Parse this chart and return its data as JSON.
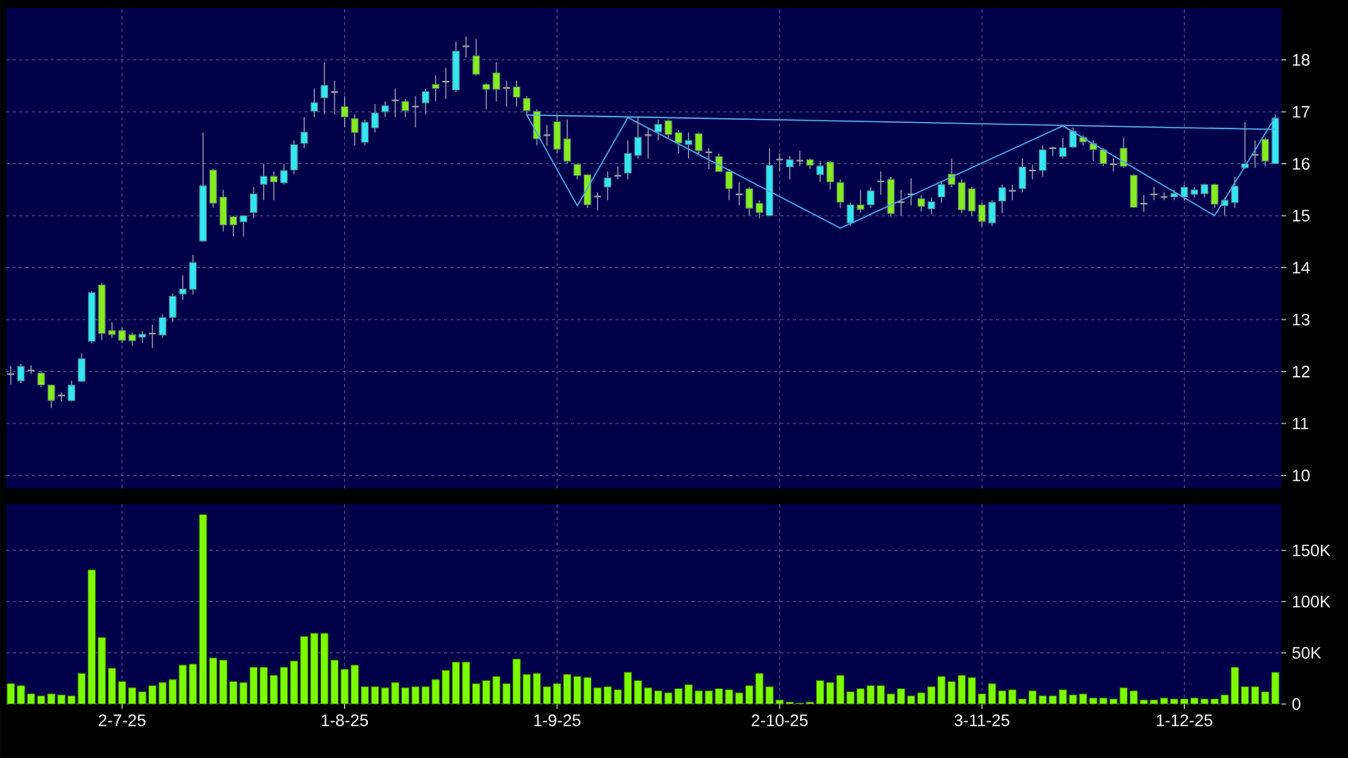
{
  "chart_data": [
    {
      "type": "candlestick",
      "categories": [
        null,
        null,
        null,
        null,
        null,
        null,
        null,
        null,
        null,
        null,
        null,
        null,
        null,
        null,
        null,
        null,
        null,
        null,
        null,
        null,
        null,
        null,
        null,
        null,
        null,
        null,
        null,
        null,
        null,
        null,
        null,
        null,
        null,
        null,
        null,
        null,
        null,
        null,
        null,
        null,
        null,
        null,
        null,
        null,
        null,
        null,
        null,
        null,
        null,
        null,
        null,
        null,
        null,
        null,
        null,
        null,
        null,
        null,
        null,
        null,
        null,
        null,
        null,
        null,
        null,
        null,
        null,
        null,
        null,
        null,
        null,
        null,
        null,
        null,
        null,
        null,
        null,
        null,
        null,
        null,
        null,
        null,
        null,
        null,
        null,
        null,
        null,
        null,
        null,
        null,
        null,
        null,
        null,
        null,
        null,
        null,
        null,
        null,
        null,
        null,
        null,
        null,
        null,
        null,
        null,
        null,
        null,
        null,
        null,
        null,
        null,
        null,
        null,
        null,
        null,
        null,
        null,
        null,
        null,
        null,
        null,
        null,
        null,
        null,
        null,
        null
      ],
      "ylim": [
        9.75,
        19
      ],
      "yticks": [
        10,
        11,
        12,
        13,
        14,
        15,
        16,
        17,
        18
      ],
      "grid": true,
      "tick_labels": "y",
      "series": [
        {
          "type": "candlestick",
          "ohlc": [
            [
              11.95,
              12.1,
              11.75,
              11.95
            ],
            [
              11.82,
              12.15,
              11.78,
              12.1
            ],
            [
              12.02,
              12.12,
              11.95,
              12.02
            ],
            [
              11.97,
              12.0,
              11.7,
              11.74
            ],
            [
              11.74,
              11.75,
              11.3,
              11.44
            ],
            [
              11.54,
              11.6,
              11.42,
              11.54
            ],
            [
              11.44,
              11.82,
              11.42,
              11.74
            ],
            [
              11.81,
              12.35,
              11.8,
              12.25
            ],
            [
              12.58,
              13.55,
              12.55,
              13.52
            ],
            [
              13.67,
              13.7,
              12.6,
              12.73
            ],
            [
              12.79,
              12.95,
              12.65,
              12.71
            ],
            [
              12.79,
              12.85,
              12.55,
              12.6
            ],
            [
              12.71,
              12.75,
              12.5,
              12.59
            ],
            [
              12.66,
              12.78,
              12.55,
              12.72
            ],
            [
              12.73,
              12.9,
              12.45,
              12.73
            ],
            [
              12.7,
              13.1,
              12.65,
              13.04
            ],
            [
              13.04,
              13.5,
              12.95,
              13.45
            ],
            [
              13.49,
              13.85,
              13.38,
              13.59
            ],
            [
              13.58,
              14.25,
              13.48,
              14.1
            ],
            [
              14.51,
              16.6,
              14.5,
              15.58
            ],
            [
              15.88,
              15.9,
              15.15,
              15.24
            ],
            [
              15.36,
              15.5,
              14.7,
              14.82
            ],
            [
              14.98,
              15.0,
              14.6,
              14.82
            ],
            [
              14.88,
              15.0,
              14.6,
              15.0
            ],
            [
              15.06,
              15.55,
              14.95,
              15.42
            ],
            [
              15.6,
              16.0,
              15.3,
              15.76
            ],
            [
              15.76,
              15.85,
              15.3,
              15.65
            ],
            [
              15.63,
              16.0,
              15.6,
              15.87
            ],
            [
              15.88,
              16.45,
              15.8,
              16.37
            ],
            [
              16.39,
              16.9,
              16.3,
              16.61
            ],
            [
              17.01,
              17.45,
              16.9,
              17.18
            ],
            [
              17.27,
              17.95,
              16.95,
              17.51
            ],
            [
              17.38,
              17.6,
              16.95,
              17.38
            ],
            [
              17.1,
              17.3,
              16.7,
              16.9
            ],
            [
              16.87,
              16.95,
              16.35,
              16.6
            ],
            [
              16.41,
              16.85,
              16.35,
              16.8
            ],
            [
              16.69,
              17.15,
              16.6,
              16.98
            ],
            [
              17.0,
              17.2,
              16.9,
              17.12
            ],
            [
              17.22,
              17.45,
              16.9,
              17.22
            ],
            [
              17.2,
              17.25,
              16.9,
              17.02
            ],
            [
              17.1,
              17.3,
              16.7,
              17.1
            ],
            [
              17.17,
              17.45,
              16.95,
              17.39
            ],
            [
              17.53,
              17.7,
              17.2,
              17.45
            ],
            [
              17.58,
              17.85,
              17.25,
              17.58
            ],
            [
              17.42,
              18.35,
              17.38,
              18.17
            ],
            [
              18.26,
              18.45,
              18.05,
              18.26
            ],
            [
              18.08,
              18.4,
              17.7,
              17.72
            ],
            [
              17.53,
              17.55,
              17.05,
              17.43
            ],
            [
              17.75,
              17.95,
              17.2,
              17.43
            ],
            [
              17.46,
              17.6,
              17.1,
              17.46
            ],
            [
              17.48,
              17.6,
              17.1,
              17.28
            ],
            [
              17.26,
              17.3,
              16.92,
              17.02
            ],
            [
              17.01,
              17.05,
              16.35,
              16.48
            ],
            [
              16.55,
              16.75,
              16.35,
              16.55
            ],
            [
              16.81,
              16.95,
              16.2,
              16.28
            ],
            [
              16.48,
              16.85,
              16.0,
              16.05
            ],
            [
              15.99,
              16.0,
              15.7,
              15.77
            ],
            [
              15.79,
              15.8,
              15.15,
              15.21
            ],
            [
              15.37,
              15.45,
              15.1,
              15.37
            ],
            [
              15.55,
              15.85,
              15.3,
              15.73
            ],
            [
              15.77,
              15.95,
              15.7,
              15.77
            ],
            [
              15.82,
              16.45,
              15.7,
              16.2
            ],
            [
              16.16,
              16.9,
              16.1,
              16.51
            ],
            [
              16.55,
              16.7,
              16.1,
              16.55
            ],
            [
              16.61,
              16.85,
              16.45,
              16.76
            ],
            [
              16.83,
              16.85,
              16.5,
              16.56
            ],
            [
              16.6,
              16.65,
              16.2,
              16.4
            ],
            [
              16.37,
              16.6,
              16.1,
              16.45
            ],
            [
              16.58,
              16.6,
              16.2,
              16.25
            ],
            [
              16.22,
              16.3,
              15.9,
              16.22
            ],
            [
              16.14,
              16.2,
              15.85,
              15.85
            ],
            [
              15.85,
              15.9,
              15.3,
              15.52
            ],
            [
              15.41,
              15.65,
              15.2,
              15.41
            ],
            [
              15.52,
              15.55,
              15.0,
              15.14
            ],
            [
              15.24,
              15.3,
              14.95,
              15.06
            ],
            [
              15.0,
              16.3,
              15.0,
              15.97
            ],
            [
              16.08,
              16.2,
              15.85,
              16.08
            ],
            [
              15.94,
              16.15,
              15.7,
              16.08
            ],
            [
              16.06,
              16.25,
              15.95,
              16.06
            ],
            [
              16.08,
              16.1,
              15.9,
              15.97
            ],
            [
              15.79,
              16.05,
              15.65,
              15.96
            ],
            [
              16.03,
              16.05,
              15.5,
              15.65
            ],
            [
              15.64,
              15.7,
              15.15,
              15.26
            ],
            [
              14.86,
              15.25,
              14.8,
              15.21
            ],
            [
              15.21,
              15.5,
              15.05,
              15.12
            ],
            [
              15.21,
              15.55,
              15.15,
              15.48
            ],
            [
              15.66,
              15.85,
              15.4,
              15.66
            ],
            [
              15.7,
              15.75,
              14.98,
              15.04
            ],
            [
              15.26,
              15.5,
              15.0,
              15.26
            ],
            [
              15.41,
              15.72,
              15.2,
              15.41
            ],
            [
              15.33,
              15.4,
              15.08,
              15.18
            ],
            [
              15.13,
              15.35,
              15.03,
              15.27
            ],
            [
              15.36,
              15.65,
              15.25,
              15.6
            ],
            [
              15.8,
              16.1,
              15.55,
              15.6
            ],
            [
              15.64,
              15.7,
              15.05,
              15.11
            ],
            [
              15.52,
              15.55,
              15.0,
              15.09
            ],
            [
              15.21,
              15.25,
              14.8,
              14.89
            ],
            [
              14.86,
              15.3,
              14.8,
              15.26
            ],
            [
              15.28,
              15.6,
              15.05,
              15.54
            ],
            [
              15.48,
              15.6,
              15.3,
              15.48
            ],
            [
              15.52,
              16.1,
              15.45,
              15.94
            ],
            [
              15.87,
              15.98,
              15.7,
              15.87
            ],
            [
              15.87,
              16.35,
              15.75,
              16.27
            ],
            [
              16.3,
              16.33,
              16.15,
              16.3
            ],
            [
              16.14,
              16.5,
              16.1,
              16.31
            ],
            [
              16.32,
              16.7,
              16.3,
              16.63
            ],
            [
              16.51,
              16.55,
              16.35,
              16.42
            ],
            [
              16.39,
              16.45,
              16.05,
              16.27
            ],
            [
              16.27,
              16.3,
              15.95,
              16.0
            ],
            [
              15.99,
              16.1,
              15.85,
              15.99
            ],
            [
              16.3,
              16.5,
              15.92,
              15.95
            ],
            [
              15.78,
              15.8,
              15.15,
              15.16
            ],
            [
              15.23,
              15.4,
              15.07,
              15.23
            ],
            [
              15.41,
              15.55,
              15.3,
              15.41
            ],
            [
              15.36,
              15.45,
              15.3,
              15.36
            ],
            [
              15.36,
              15.5,
              15.3,
              15.43
            ],
            [
              15.36,
              15.6,
              15.3,
              15.55
            ],
            [
              15.41,
              15.55,
              15.35,
              15.5
            ],
            [
              15.42,
              15.62,
              15.35,
              15.6
            ],
            [
              15.6,
              15.62,
              15.15,
              15.22
            ],
            [
              15.19,
              15.35,
              15.0,
              15.3
            ],
            [
              15.25,
              15.75,
              15.15,
              15.57
            ],
            [
              15.92,
              16.8,
              15.9,
              16.0
            ],
            [
              16.17,
              16.45,
              15.92,
              16.17
            ],
            [
              16.47,
              16.5,
              15.95,
              16.05
            ],
            [
              16.0,
              16.95,
              16.0,
              16.88
            ]
          ],
          "colors": [
            "#a0a0a0",
            "#33e6f2",
            "#a0a0a0",
            "#86ec1e",
            "#86ec1e",
            "#a0a0a0",
            "#33e6f2",
            "#33e6f2",
            "#33e6f2",
            "#86ec1e",
            "#86ec1e",
            "#86ec1e",
            "#86ec1e",
            "#33e6f2",
            "#a0a0a0",
            "#33e6f2",
            "#33e6f2",
            "#33e6f2",
            "#33e6f2",
            "#33e6f2",
            "#86ec1e",
            "#86ec1e",
            "#86ec1e",
            "#33e6f2",
            "#33e6f2",
            "#33e6f2",
            "#86ec1e",
            "#33e6f2",
            "#33e6f2",
            "#33e6f2",
            "#33e6f2",
            "#33e6f2",
            "#a0a0a0",
            "#86ec1e",
            "#86ec1e",
            "#33e6f2",
            "#33e6f2",
            "#33e6f2",
            "#a0a0a0",
            "#86ec1e",
            "#a0a0a0",
            "#33e6f2",
            "#86ec1e",
            "#a0a0a0",
            "#33e6f2",
            "#a0a0a0",
            "#86ec1e",
            "#86ec1e",
            "#86ec1e",
            "#a0a0a0",
            "#86ec1e",
            "#86ec1e",
            "#86ec1e",
            "#a0a0a0",
            "#86ec1e",
            "#86ec1e",
            "#86ec1e",
            "#86ec1e",
            "#a0a0a0",
            "#33e6f2",
            "#a0a0a0",
            "#33e6f2",
            "#33e6f2",
            "#a0a0a0",
            "#33e6f2",
            "#86ec1e",
            "#86ec1e",
            "#33e6f2",
            "#86ec1e",
            "#a0a0a0",
            "#86ec1e",
            "#86ec1e",
            "#a0a0a0",
            "#86ec1e",
            "#86ec1e",
            "#33e6f2",
            "#a0a0a0",
            "#33e6f2",
            "#a0a0a0",
            "#86ec1e",
            "#33e6f2",
            "#86ec1e",
            "#86ec1e",
            "#33e6f2",
            "#86ec1e",
            "#33e6f2",
            "#a0a0a0",
            "#86ec1e",
            "#a0a0a0",
            "#a0a0a0",
            "#86ec1e",
            "#33e6f2",
            "#33e6f2",
            "#86ec1e",
            "#86ec1e",
            "#86ec1e",
            "#86ec1e",
            "#33e6f2",
            "#33e6f2",
            "#a0a0a0",
            "#33e6f2",
            "#a0a0a0",
            "#33e6f2",
            "#a0a0a0",
            "#33e6f2",
            "#33e6f2",
            "#86ec1e",
            "#86ec1e",
            "#86ec1e",
            "#a0a0a0",
            "#86ec1e",
            "#86ec1e",
            "#a0a0a0",
            "#a0a0a0",
            "#a0a0a0",
            "#33e6f2",
            "#33e6f2",
            "#33e6f2",
            "#33e6f2",
            "#86ec1e",
            "#33e6f2",
            "#33e6f2",
            "#33e6f2",
            "#a0a0a0",
            "#86ec1e",
            "#33e6f2"
          ]
        },
        {
          "type": "line",
          "values": [
            null,
            null,
            null,
            null,
            null,
            null,
            null,
            null,
            null,
            null,
            null,
            null,
            null,
            null,
            null,
            null,
            null,
            null,
            null,
            null,
            null,
            null,
            null,
            null,
            null,
            null,
            null,
            null,
            null,
            null,
            null,
            null,
            null,
            null,
            null,
            null,
            null,
            null,
            null,
            null,
            null,
            null,
            null,
            null,
            null,
            null,
            null,
            null,
            null,
            null,
            null,
            16.94,
            null,
            null,
            null,
            null,
            null,
            null,
            null,
            null,
            null,
            null,
            null,
            null,
            null,
            null,
            null,
            null,
            null,
            null,
            null,
            null,
            null,
            null,
            null,
            null,
            null,
            null,
            null,
            null,
            null,
            null,
            null,
            null,
            null,
            null,
            null,
            null,
            null,
            null,
            null,
            null,
            null,
            null,
            null,
            null,
            null,
            null,
            null,
            null,
            null,
            null,
            null,
            null,
            null,
            null,
            null,
            null,
            null,
            null,
            null,
            null,
            null,
            null,
            null,
            null,
            null,
            null,
            null,
            null,
            null,
            null,
            null,
            null,
            null,
            16.66
          ],
          "color": "#5ab4ee"
        },
        {
          "type": "line",
          "values": [
            null,
            null,
            null,
            null,
            null,
            null,
            null,
            null,
            null,
            null,
            null,
            null,
            null,
            null,
            null,
            null,
            null,
            null,
            null,
            null,
            null,
            null,
            null,
            null,
            null,
            null,
            null,
            null,
            null,
            null,
            null,
            null,
            null,
            null,
            null,
            null,
            null,
            null,
            null,
            null,
            null,
            null,
            null,
            null,
            null,
            null,
            null,
            null,
            null,
            null,
            null,
            16.94,
            null,
            null,
            null,
            null,
            15.19,
            null,
            null,
            null,
            null,
            16.89,
            null,
            null,
            null,
            null,
            null,
            null,
            null,
            null,
            null,
            null,
            null,
            null,
            null,
            null,
            null,
            null,
            null,
            null,
            null,
            null,
            14.76,
            null,
            null,
            null,
            null,
            null,
            null,
            null,
            null,
            null,
            null,
            null,
            null,
            null,
            null,
            null,
            null,
            null,
            null,
            null,
            null,
            null,
            16.73,
            null,
            null,
            null,
            null,
            null,
            null,
            null,
            null,
            null,
            null,
            null,
            null,
            null,
            null,
            15.0,
            null,
            null,
            null,
            null,
            null,
            16.9
          ],
          "color": "#4aa8e8"
        }
      ]
    },
    {
      "type": "bar",
      "categories": [
        null,
        null,
        null,
        null,
        null,
        null,
        null,
        null,
        null,
        null,
        null,
        "2-7-25",
        null,
        null,
        null,
        null,
        null,
        null,
        null,
        null,
        null,
        null,
        null,
        null,
        null,
        null,
        null,
        null,
        null,
        null,
        null,
        null,
        null,
        "1-8-25",
        null,
        null,
        null,
        null,
        null,
        null,
        null,
        null,
        null,
        null,
        null,
        null,
        null,
        null,
        null,
        null,
        null,
        null,
        null,
        null,
        "1-9-25",
        null,
        null,
        null,
        null,
        null,
        null,
        null,
        null,
        null,
        null,
        null,
        null,
        null,
        null,
        null,
        null,
        null,
        null,
        null,
        null,
        null,
        "2-10-25",
        null,
        null,
        null,
        null,
        null,
        null,
        null,
        null,
        null,
        null,
        null,
        null,
        null,
        null,
        null,
        null,
        null,
        null,
        null,
        "3-11-25",
        null,
        null,
        null,
        null,
        null,
        null,
        null,
        null,
        null,
        null,
        null,
        null,
        null,
        null,
        null,
        null,
        null,
        null,
        null,
        "1-12-25",
        null,
        null,
        null,
        null,
        null,
        null,
        null,
        null,
        null
      ],
      "values": [
        20,
        18,
        10,
        8,
        10,
        9,
        8,
        30,
        131,
        65,
        35,
        22,
        16,
        12,
        18,
        21,
        24,
        38,
        39,
        185,
        45,
        43,
        22,
        21,
        36,
        36,
        28,
        36,
        42,
        66,
        69,
        69,
        43,
        34,
        38,
        17,
        17,
        16,
        21,
        16,
        17,
        17,
        24,
        33,
        41,
        41,
        20,
        23,
        27,
        20,
        44,
        29,
        30,
        17,
        20,
        29,
        27,
        26,
        16,
        17,
        14,
        31,
        23,
        16,
        13,
        11,
        15,
        19,
        13,
        13,
        15,
        14,
        11,
        18,
        30,
        17,
        4,
        2,
        1,
        2,
        23,
        21,
        28,
        12,
        15,
        18,
        18,
        10,
        15,
        8,
        11,
        17,
        27,
        22,
        28,
        26,
        10,
        20,
        13,
        14,
        5,
        13,
        8,
        8,
        14,
        9,
        10,
        6,
        6,
        5,
        16,
        13,
        4,
        4,
        6,
        5,
        5,
        6,
        5,
        5,
        9,
        36,
        17,
        17,
        12,
        31
      ],
      "color": "#7cfc00",
      "ylim": [
        0,
        195
      ],
      "yticks": [
        0,
        {
          "value": 50,
          "label": "50K"
        },
        {
          "value": 100,
          "label": "100K"
        },
        {
          "value": 150,
          "label": "150K"
        }
      ],
      "grid": true
    }
  ]
}
